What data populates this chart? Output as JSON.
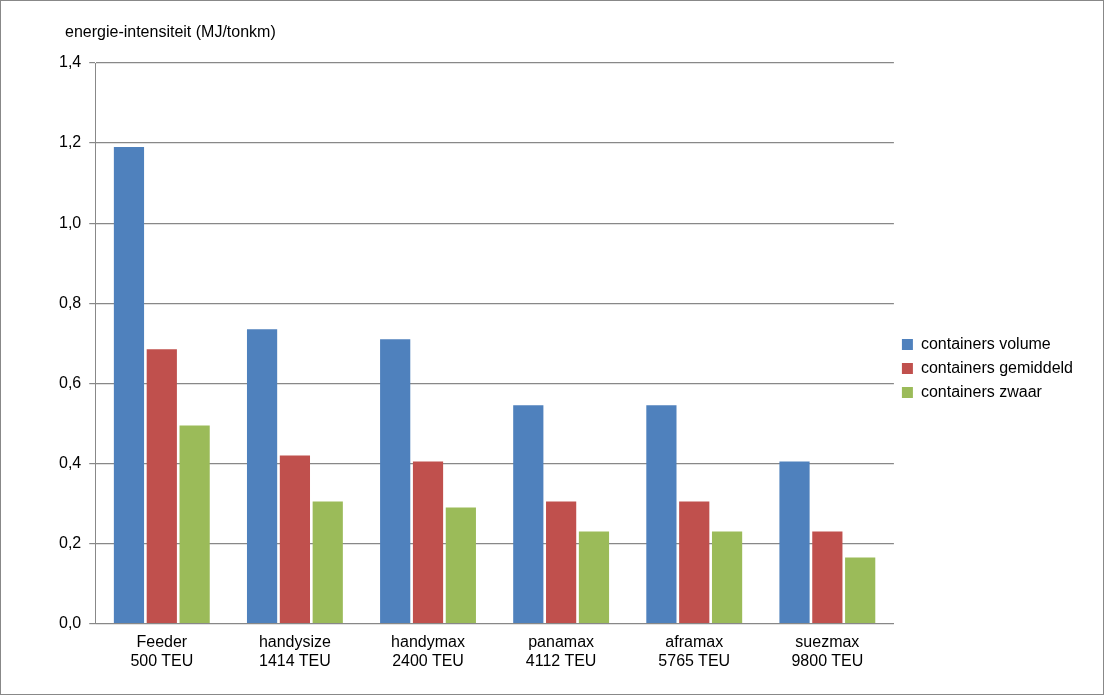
{
  "chart_data": {
    "type": "bar",
    "ylabel": "energie-intensiteit (MJ/tonkm)",
    "categories": [
      "Feeder\n500 TEU",
      "handysize\n1414 TEU",
      "handymax\n2400 TEU",
      "panamax\n4112 TEU",
      "aframax\n5765 TEU",
      "suezmax\n9800 TEU"
    ],
    "series": [
      {
        "name": "containers volume",
        "color": "#4f81bd",
        "values": [
          1.19,
          0.735,
          0.71,
          0.545,
          0.545,
          0.405
        ]
      },
      {
        "name": "containers gemiddeld",
        "color": "#c0504d",
        "values": [
          0.685,
          0.42,
          0.405,
          0.305,
          0.305,
          0.23
        ]
      },
      {
        "name": "containers zwaar",
        "color": "#9bbb59",
        "values": [
          0.495,
          0.305,
          0.29,
          0.23,
          0.23,
          0.165
        ]
      }
    ],
    "ylim": [
      0,
      1.4
    ],
    "yticks": [
      {
        "value": 0,
        "label": "0,0"
      },
      {
        "value": 0.2,
        "label": "0,2"
      },
      {
        "value": 0.4,
        "label": "0,4"
      },
      {
        "value": 0.6,
        "label": "0,6"
      },
      {
        "value": 0.8,
        "label": "0,8"
      },
      {
        "value": 1,
        "label": "1,0"
      },
      {
        "value": 1.2,
        "label": "1,2"
      },
      {
        "value": 1.4,
        "label": "1,4"
      }
    ],
    "grid": "y",
    "legend": "right"
  }
}
